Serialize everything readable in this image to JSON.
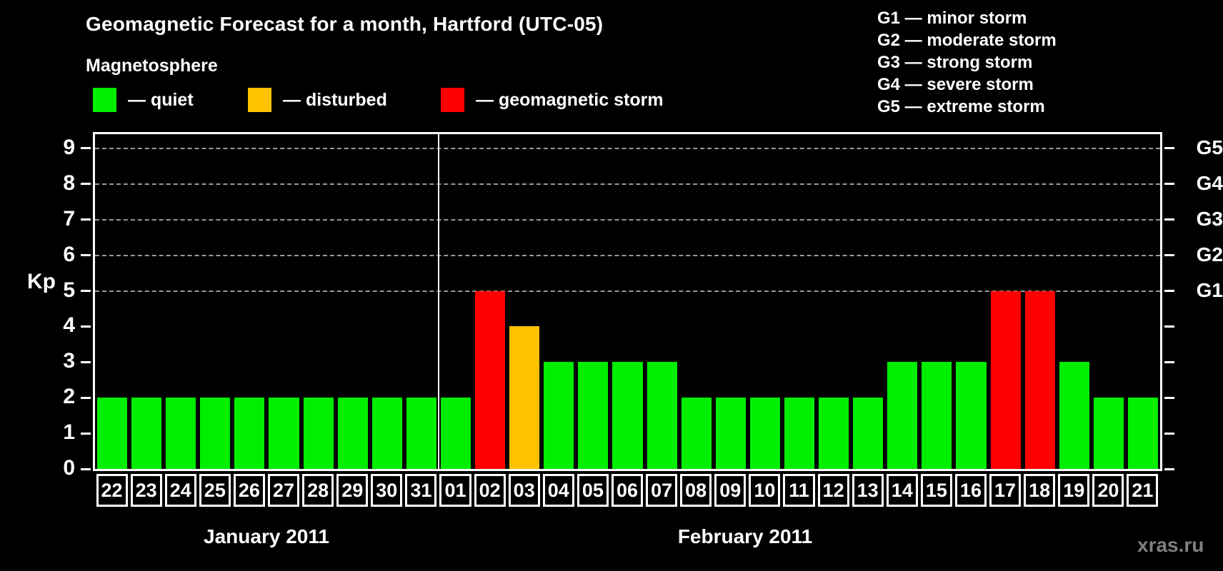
{
  "title": "Geomagnetic Forecast for a month, Hartford (UTC-05)",
  "watermark": "xras.ru",
  "legend": {
    "heading": "Magnetosphere",
    "items": [
      {
        "label": "— quiet",
        "level": "quiet"
      },
      {
        "label": "— disturbed",
        "level": "disturbed"
      },
      {
        "label": "— geomagnetic storm",
        "level": "storm"
      }
    ]
  },
  "g_scale_legend": [
    "G1 — minor storm",
    "G2 — moderate storm",
    "G3 — strong storm",
    "G4 — severe storm",
    "G5 — extreme storm"
  ],
  "colors": {
    "quiet": "#00ee00",
    "disturbed": "#ffc200",
    "storm": "#ff0000",
    "grid": "#999999",
    "axis": "#ffffff",
    "background": "#000000"
  },
  "chart_data": {
    "type": "bar",
    "title": "Geomagnetic Forecast for a month, Hartford (UTC-05)",
    "ylabel": "Kp",
    "ylim": [
      0,
      9.4
    ],
    "yticks": [
      0,
      1,
      2,
      3,
      4,
      5,
      6,
      7,
      8,
      9
    ],
    "gridlines_at": [
      5,
      6,
      7,
      8,
      9
    ],
    "grid": "dashed, Kp 5-9 only",
    "legend_position": "top",
    "right_axis": [
      {
        "kp": 5,
        "label": "G1"
      },
      {
        "kp": 6,
        "label": "G2"
      },
      {
        "kp": 7,
        "label": "G3"
      },
      {
        "kp": 8,
        "label": "G4"
      },
      {
        "kp": 9,
        "label": "G5"
      }
    ],
    "months": [
      {
        "label": "January 2011",
        "days_count": 10
      },
      {
        "label": "February 2011",
        "days_count": 21
      }
    ],
    "days": [
      {
        "date": "22",
        "month": "January 2011",
        "kp": 2,
        "level": "quiet"
      },
      {
        "date": "23",
        "month": "January 2011",
        "kp": 2,
        "level": "quiet"
      },
      {
        "date": "24",
        "month": "January 2011",
        "kp": 2,
        "level": "quiet"
      },
      {
        "date": "25",
        "month": "January 2011",
        "kp": 2,
        "level": "quiet"
      },
      {
        "date": "26",
        "month": "January 2011",
        "kp": 2,
        "level": "quiet"
      },
      {
        "date": "27",
        "month": "January 2011",
        "kp": 2,
        "level": "quiet"
      },
      {
        "date": "28",
        "month": "January 2011",
        "kp": 2,
        "level": "quiet"
      },
      {
        "date": "29",
        "month": "January 2011",
        "kp": 2,
        "level": "quiet"
      },
      {
        "date": "30",
        "month": "January 2011",
        "kp": 2,
        "level": "quiet"
      },
      {
        "date": "31",
        "month": "January 2011",
        "kp": 2,
        "level": "quiet"
      },
      {
        "date": "01",
        "month": "February 2011",
        "kp": 2,
        "level": "quiet"
      },
      {
        "date": "02",
        "month": "February 2011",
        "kp": 5,
        "level": "storm"
      },
      {
        "date": "03",
        "month": "February 2011",
        "kp": 4,
        "level": "disturbed"
      },
      {
        "date": "04",
        "month": "February 2011",
        "kp": 3,
        "level": "quiet"
      },
      {
        "date": "05",
        "month": "February 2011",
        "kp": 3,
        "level": "quiet"
      },
      {
        "date": "06",
        "month": "February 2011",
        "kp": 3,
        "level": "quiet"
      },
      {
        "date": "07",
        "month": "February 2011",
        "kp": 3,
        "level": "quiet"
      },
      {
        "date": "08",
        "month": "February 2011",
        "kp": 2,
        "level": "quiet"
      },
      {
        "date": "09",
        "month": "February 2011",
        "kp": 2,
        "level": "quiet"
      },
      {
        "date": "10",
        "month": "February 2011",
        "kp": 2,
        "level": "quiet"
      },
      {
        "date": "11",
        "month": "February 2011",
        "kp": 2,
        "level": "quiet"
      },
      {
        "date": "12",
        "month": "February 2011",
        "kp": 2,
        "level": "quiet"
      },
      {
        "date": "13",
        "month": "February 2011",
        "kp": 2,
        "level": "quiet"
      },
      {
        "date": "14",
        "month": "February 2011",
        "kp": 3,
        "level": "quiet"
      },
      {
        "date": "15",
        "month": "February 2011",
        "kp": 3,
        "level": "quiet"
      },
      {
        "date": "16",
        "month": "February 2011",
        "kp": 3,
        "level": "quiet"
      },
      {
        "date": "17",
        "month": "February 2011",
        "kp": 5,
        "level": "storm"
      },
      {
        "date": "18",
        "month": "February 2011",
        "kp": 5,
        "level": "storm"
      },
      {
        "date": "19",
        "month": "February 2011",
        "kp": 3,
        "level": "quiet"
      },
      {
        "date": "20",
        "month": "February 2011",
        "kp": 2,
        "level": "quiet"
      },
      {
        "date": "21",
        "month": "February 2011",
        "kp": 2,
        "level": "quiet"
      }
    ]
  }
}
